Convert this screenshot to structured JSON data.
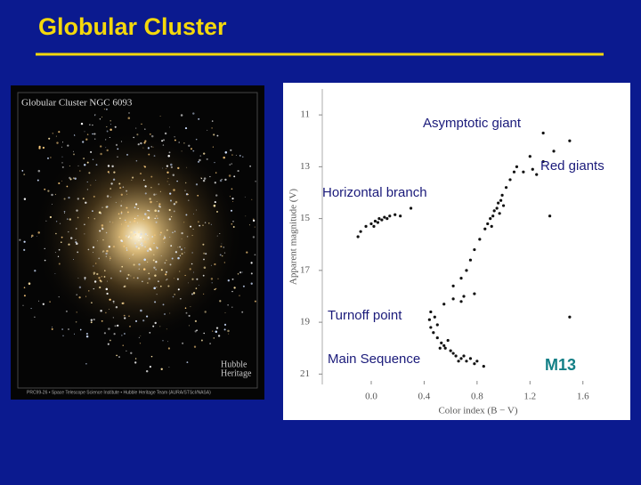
{
  "slide": {
    "title": "Globular Cluster"
  },
  "photo": {
    "caption": "Globular Cluster NGC 6093",
    "logo": [
      "Hubble",
      "Heritage"
    ],
    "credit": "PRC99-26 • Space Telescope Science Institute • Hubble Heritage Team (AURA/STScI/NASA)"
  },
  "chart_data": {
    "type": "scatter",
    "x_label": "Color index (B − V)",
    "y_label": "Apparent magnitude (V)",
    "annotations": [
      "Asymptotic giant",
      "Red giants",
      "Horizontal branch",
      "Turnoff point",
      "Main Sequence",
      "M13"
    ],
    "color": "#111111",
    "xlim": [
      -0.37,
      1.77
    ],
    "ylim": [
      10,
      21.4
    ],
    "y_inverted": true,
    "xticks": [
      {
        "value": 0,
        "label": "0.0"
      },
      0.4,
      0.8,
      1.2,
      1.6
    ],
    "yticks": [
      11,
      13,
      15,
      17,
      19,
      21
    ],
    "x": [
      -0.08,
      -0.04,
      0.0,
      0.03,
      0.06,
      0.1,
      0.14,
      0.18,
      0.22,
      0.02,
      0.08,
      -0.1,
      0.12,
      0.05,
      0.62,
      0.68,
      0.72,
      0.75,
      0.78,
      0.82,
      0.86,
      0.9,
      0.93,
      0.96,
      0.99,
      1.02,
      1.05,
      1.08,
      1.1,
      0.88,
      0.92,
      0.95,
      0.98,
      0.91,
      0.97,
      1.0,
      1.15,
      1.22,
      1.3,
      1.38,
      1.5,
      1.2,
      1.25,
      0.55,
      0.62,
      0.7,
      0.78,
      0.68,
      0.45,
      0.44,
      0.45,
      0.47,
      0.5,
      0.48,
      0.5,
      0.53,
      0.56,
      0.6,
      0.64,
      0.68,
      0.72,
      0.78,
      0.85,
      0.55,
      0.62,
      0.7,
      0.75,
      0.58,
      0.66,
      0.8,
      0.52,
      1.35,
      1.5,
      0.3,
      1.3
    ],
    "values": [
      15.5,
      15.3,
      15.2,
      15.1,
      15.0,
      14.95,
      14.9,
      14.85,
      14.9,
      15.3,
      15.05,
      15.7,
      15.0,
      15.15,
      17.6,
      17.3,
      17.0,
      16.6,
      16.2,
      15.8,
      15.4,
      15.0,
      14.7,
      14.4,
      14.1,
      13.8,
      13.5,
      13.2,
      13.0,
      15.2,
      14.9,
      14.6,
      14.3,
      15.3,
      14.8,
      14.5,
      13.2,
      13.1,
      12.8,
      12.4,
      12.0,
      12.6,
      13.3,
      18.3,
      18.1,
      18.0,
      17.9,
      18.2,
      18.6,
      18.9,
      19.2,
      19.4,
      19.1,
      18.8,
      19.6,
      19.8,
      20.0,
      20.1,
      20.3,
      20.4,
      20.5,
      20.6,
      20.7,
      19.9,
      20.2,
      20.3,
      20.4,
      19.7,
      20.5,
      20.5,
      20.0,
      14.9,
      18.8,
      14.6,
      11.7
    ]
  }
}
